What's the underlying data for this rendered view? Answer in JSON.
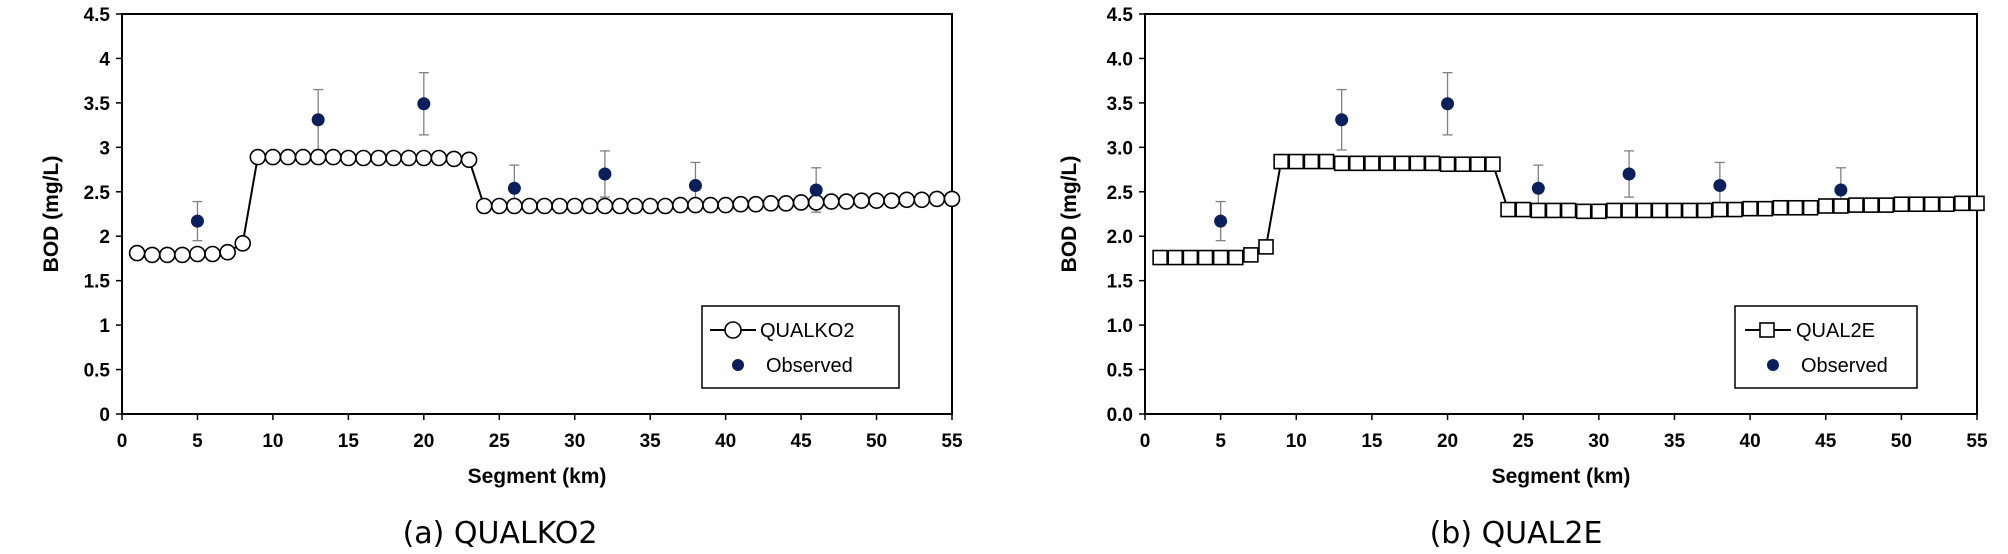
{
  "chart_data": [
    {
      "type": "line",
      "caption": "(a)  QUALKO2",
      "xlabel": "Segment (km)",
      "ylabel": "BOD (mg/L)",
      "xlim": [
        0,
        55
      ],
      "ylim": [
        0,
        4.5
      ],
      "xticks": [
        0,
        5,
        10,
        15,
        20,
        25,
        30,
        35,
        40,
        45,
        50,
        55
      ],
      "yticks": [
        "0",
        "0.5",
        "1",
        "1.5",
        "2",
        "2.5",
        "3",
        "3.5",
        "4",
        "4.5"
      ],
      "grid": false,
      "legend": "bottom-right",
      "series": [
        {
          "name": "QUALKO2",
          "marker": "circle-open",
          "x": [
            1,
            2,
            3,
            4,
            5,
            6,
            7,
            8,
            9,
            10,
            11,
            12,
            13,
            14,
            15,
            16,
            17,
            18,
            19,
            20,
            21,
            22,
            23,
            24,
            25,
            26,
            27,
            28,
            29,
            30,
            31,
            32,
            33,
            34,
            35,
            36,
            37,
            38,
            39,
            40,
            41,
            42,
            43,
            44,
            45,
            46,
            47,
            48,
            49,
            50,
            51,
            52,
            53,
            54,
            55
          ],
          "y": [
            1.81,
            1.79,
            1.79,
            1.79,
            1.8,
            1.8,
            1.82,
            1.92,
            2.89,
            2.89,
            2.89,
            2.89,
            2.89,
            2.89,
            2.88,
            2.88,
            2.88,
            2.88,
            2.88,
            2.88,
            2.88,
            2.87,
            2.86,
            2.34,
            2.34,
            2.34,
            2.34,
            2.34,
            2.34,
            2.34,
            2.34,
            2.34,
            2.34,
            2.34,
            2.34,
            2.34,
            2.35,
            2.35,
            2.35,
            2.35,
            2.36,
            2.36,
            2.37,
            2.37,
            2.38,
            2.38,
            2.39,
            2.39,
            2.4,
            2.4,
            2.4,
            2.41,
            2.41,
            2.42,
            2.42
          ]
        },
        {
          "name": "Observed",
          "marker": "dot",
          "x": [
            5,
            13,
            20,
            26,
            32,
            38,
            46
          ],
          "y": [
            2.17,
            3.31,
            3.49,
            2.54,
            2.7,
            2.57,
            2.52
          ],
          "err": [
            0.22,
            0.34,
            0.35,
            0.26,
            0.26,
            0.26,
            0.25
          ]
        }
      ]
    },
    {
      "type": "line",
      "caption": "(b)  QUAL2E",
      "xlabel": "Segment (km)",
      "ylabel": "BOD (mg/L)",
      "xlim": [
        0,
        55
      ],
      "ylim": [
        0,
        4.5
      ],
      "xticks": [
        0,
        5,
        10,
        15,
        20,
        25,
        30,
        35,
        40,
        45,
        50,
        55
      ],
      "yticks": [
        "0.0",
        "0.5",
        "1.0",
        "1.5",
        "2.0",
        "2.5",
        "3.0",
        "3.5",
        "4.0",
        "4.5"
      ],
      "grid": false,
      "legend": "bottom-right",
      "series": [
        {
          "name": "QUAL2E",
          "marker": "square-open",
          "x": [
            1,
            2,
            3,
            4,
            5,
            6,
            7,
            8,
            9,
            10,
            11,
            12,
            13,
            14,
            15,
            16,
            17,
            18,
            19,
            20,
            21,
            22,
            23,
            24,
            25,
            26,
            27,
            28,
            29,
            30,
            31,
            32,
            33,
            34,
            35,
            36,
            37,
            38,
            39,
            40,
            41,
            42,
            43,
            44,
            45,
            46,
            47,
            48,
            49,
            50,
            51,
            52,
            53,
            54,
            55
          ],
          "y": [
            1.76,
            1.76,
            1.76,
            1.76,
            1.76,
            1.76,
            1.79,
            1.88,
            2.84,
            2.84,
            2.84,
            2.84,
            2.82,
            2.82,
            2.82,
            2.82,
            2.82,
            2.82,
            2.82,
            2.81,
            2.81,
            2.81,
            2.81,
            2.3,
            2.3,
            2.29,
            2.29,
            2.29,
            2.28,
            2.28,
            2.29,
            2.29,
            2.29,
            2.29,
            2.29,
            2.29,
            2.29,
            2.3,
            2.3,
            2.31,
            2.31,
            2.32,
            2.32,
            2.32,
            2.34,
            2.34,
            2.35,
            2.35,
            2.35,
            2.36,
            2.36,
            2.36,
            2.36,
            2.37,
            2.37
          ]
        },
        {
          "name": "Observed",
          "marker": "dot",
          "x": [
            5,
            13,
            20,
            26,
            32,
            38,
            46
          ],
          "y": [
            2.17,
            3.31,
            3.49,
            2.54,
            2.7,
            2.57,
            2.52
          ],
          "err": [
            0.22,
            0.34,
            0.35,
            0.26,
            0.26,
            0.26,
            0.25
          ]
        }
      ]
    }
  ],
  "colors": {
    "line": "#000000",
    "observed": "#0b1f5c",
    "errorbar": "#808080",
    "frame": "#000000"
  }
}
